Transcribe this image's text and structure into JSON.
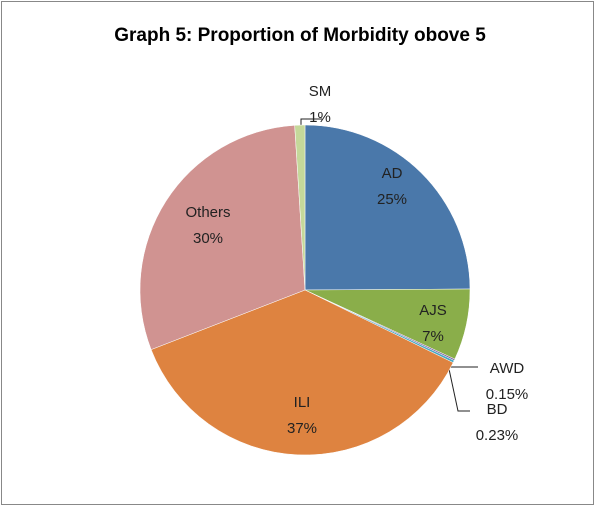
{
  "chart_data": {
    "type": "pie",
    "title": "Graph 5: Proportion of Morbidity obove 5",
    "categories": [
      "AD",
      "AJS",
      "AWD",
      "BD",
      "ILI",
      "Others",
      "SM"
    ],
    "values": [
      25,
      7,
      0.15,
      0.23,
      37,
      30,
      1
    ],
    "value_labels": [
      "25%",
      "7%",
      "0.15%",
      "0.23%",
      "37%",
      "30%",
      "1%"
    ],
    "colors": [
      "#4a78aa",
      "#8aae4a",
      "#7c62a0",
      "#4aa8c4",
      "#de8340",
      "#d09391",
      "#c5d89a"
    ]
  }
}
